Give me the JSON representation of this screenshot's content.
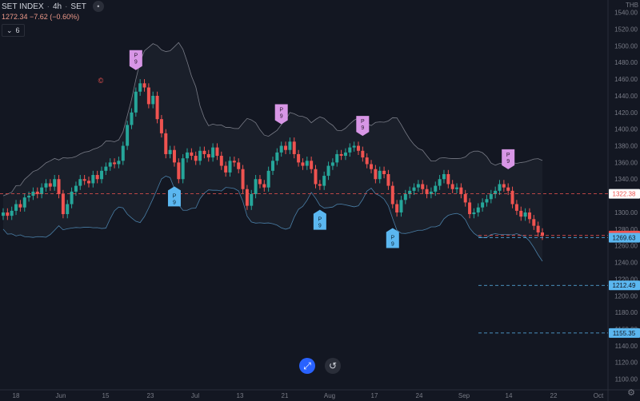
{
  "header": {
    "symbol": "SET INDEX",
    "interval": "4h",
    "exchange": "SET",
    "sep": "·"
  },
  "quote": "1272.34 −7.62 (−0.60%)",
  "indicator": {
    "chevron": "⌄",
    "value": "6"
  },
  "currency": "THB",
  "colors": {
    "background": "#131722",
    "up": "#26a69a",
    "down": "#ef5350",
    "band": "#787b86",
    "marker_buy": "#5bb7f0",
    "marker_sell": "#d896e6",
    "price_line": "#ef5350"
  },
  "chart_data": {
    "type": "candlestick",
    "y_ticks": [
      "1540.00",
      "1520.00",
      "1500.00",
      "1480.00",
      "1460.00",
      "1440.00",
      "1420.00",
      "1400.00",
      "1380.00",
      "1360.00",
      "1340.00",
      "1320.00",
      "1300.00",
      "1280.00",
      "1260.00",
      "1240.00",
      "1220.00",
      "1200.00",
      "1180.00",
      "1160.00",
      "1140.00",
      "1120.00",
      "1100.00"
    ],
    "ylim": [
      1090,
      1555
    ],
    "x_ticks": [
      "18",
      "Jun",
      "15",
      "23",
      "Jul",
      "13",
      "21",
      "Aug",
      "17",
      "24",
      "Sep",
      "14",
      "22",
      "Oct"
    ],
    "price_labels": [
      {
        "value": 1322.38,
        "text": "1322.38",
        "style": "line-red"
      },
      {
        "value": 1272.34,
        "text": "1272.34",
        "style": "last-red"
      },
      {
        "value": 1269.63,
        "text": "1269.63",
        "style": "blue"
      },
      {
        "value": 1212.49,
        "text": "1212.49",
        "style": "blue"
      },
      {
        "value": 1155.35,
        "text": "1155.35",
        "style": "blue"
      }
    ],
    "series_close": [
      1300,
      1296,
      1302,
      1310,
      1306,
      1318,
      1320,
      1325,
      1322,
      1330,
      1335,
      1331,
      1340,
      1322,
      1298,
      1310,
      1325,
      1332,
      1340,
      1338,
      1335,
      1345,
      1340,
      1350,
      1355,
      1360,
      1358,
      1362,
      1380,
      1405,
      1420,
      1445,
      1455,
      1450,
      1430,
      1440,
      1412,
      1395,
      1370,
      1375,
      1360,
      1340,
      1365,
      1372,
      1368,
      1362,
      1374,
      1370,
      1366,
      1378,
      1368,
      1356,
      1348,
      1362,
      1360,
      1352,
      1328,
      1308,
      1322,
      1340,
      1334,
      1330,
      1350,
      1362,
      1372,
      1380,
      1375,
      1385,
      1370,
      1360,
      1356,
      1362,
      1352,
      1334,
      1332,
      1344,
      1356,
      1360,
      1370,
      1368,
      1372,
      1378,
      1380,
      1374,
      1366,
      1358,
      1352,
      1340,
      1350,
      1346,
      1332,
      1310,
      1300,
      1315,
      1322,
      1326,
      1330,
      1334,
      1328,
      1322,
      1325,
      1332,
      1340,
      1346,
      1334,
      1328,
      1330,
      1322,
      1312,
      1298,
      1300,
      1306,
      1312,
      1316,
      1322,
      1326,
      1334,
      1330,
      1326,
      1310,
      1302,
      1295,
      1300,
      1292,
      1284,
      1276,
      1272
    ],
    "markers": [
      {
        "label": "P\n9",
        "type": "sell",
        "index": 31
      },
      {
        "label": "P\n9",
        "type": "buy",
        "index": 40
      },
      {
        "label": "P\n9",
        "type": "sell",
        "index": 65
      },
      {
        "label": "P\n9",
        "type": "buy",
        "index": 74
      },
      {
        "label": "P\n9",
        "type": "sell",
        "index": 84
      },
      {
        "label": "P\n9",
        "type": "buy",
        "index": 91
      },
      {
        "label": "P\n9",
        "type": "sell",
        "index": 118
      }
    ],
    "annotation": "©",
    "grid": false,
    "legend": "none"
  },
  "controls": {
    "center_icon": "⤢",
    "reset_icon": "↺",
    "settings_icon": "⚙"
  }
}
